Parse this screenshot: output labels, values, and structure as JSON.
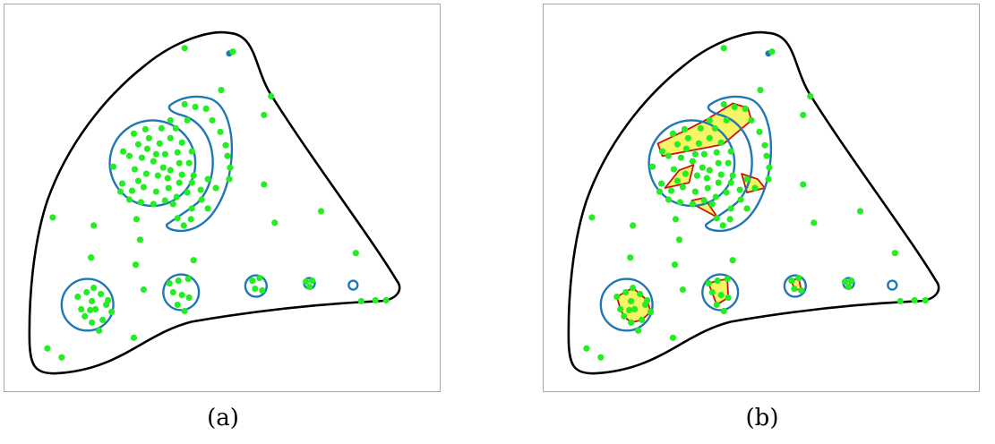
{
  "figure": {
    "colors": {
      "boundary": "#000000",
      "regions": "#1f77b4",
      "points": "#22ee22",
      "hull_stroke": "#cc1111",
      "hull_fill": "#f2f24a"
    },
    "panels": [
      {
        "id": "a",
        "caption": "(a)"
      },
      {
        "id": "b",
        "caption": "(b)"
      }
    ]
  }
}
